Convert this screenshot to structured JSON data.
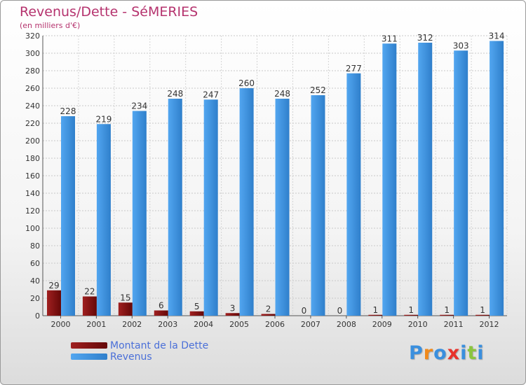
{
  "chart_data": {
    "type": "bar",
    "title": "Revenus/Dette - SéMERIES",
    "unit_label": "(en milliers d'€)",
    "categories": [
      "2000",
      "2001",
      "2002",
      "2003",
      "2004",
      "2005",
      "2006",
      "2007",
      "2008",
      "2009",
      "2010",
      "2011",
      "2012"
    ],
    "series": [
      {
        "name": "Montant de la Dette",
        "color": "#7a0e0e",
        "values": [
          29,
          22,
          15,
          6,
          5,
          3,
          2,
          0,
          0,
          1,
          1,
          1,
          1
        ]
      },
      {
        "name": "Revenus",
        "color": "#3a8fde",
        "values": [
          228,
          219,
          234,
          248,
          247,
          260,
          248,
          252,
          277,
          311,
          312,
          303,
          314
        ]
      }
    ],
    "ylim": [
      0,
      320
    ],
    "ytick_step": 20,
    "grid": true,
    "legend_position": "bottom-left"
  },
  "logo": {
    "text": "Proxiti",
    "letter_colors": [
      "#3a8fde",
      "#f08a1c",
      "#3a8fde",
      "#e8322a",
      "#3a8fde",
      "#8bc53f",
      "#3a8fde"
    ]
  }
}
